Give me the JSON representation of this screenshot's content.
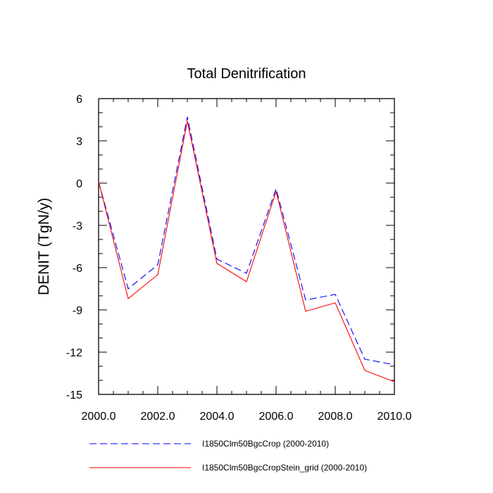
{
  "chart_data": {
    "type": "line",
    "title": "Total Denitrification",
    "xlabel": "",
    "ylabel": "DENIT  (TgN/y)",
    "xlim": [
      2000,
      2010
    ],
    "ylim": [
      -15,
      6
    ],
    "xticks": [
      2000,
      2002,
      2004,
      2006,
      2008,
      2010
    ],
    "xtick_labels": [
      "2000.0",
      "2002.0",
      "2004.0",
      "2006.0",
      "2008.0",
      "2010.0"
    ],
    "yticks": [
      6,
      3,
      0,
      -3,
      -6,
      -9,
      -12,
      -15
    ],
    "ytick_labels": [
      "6",
      "3",
      "0",
      "-3",
      "-6",
      "-9",
      "-12",
      "-15"
    ],
    "x": [
      2000,
      2001,
      2002,
      2003,
      2004,
      2005,
      2006,
      2007,
      2008,
      2009,
      2010
    ],
    "series": [
      {
        "name": "I1850Clm50BgcCrop (2000-2010)",
        "color": "#0000ff",
        "style": "dashed",
        "values": [
          0.1,
          -7.5,
          -5.8,
          4.7,
          -5.4,
          -6.4,
          -0.4,
          -8.3,
          -7.9,
          -12.5,
          -12.9
        ]
      },
      {
        "name": "I1850Clm50BgcCropStein_grid (2000-2010)",
        "color": "#ff0000",
        "style": "solid",
        "values": [
          0.1,
          -8.2,
          -6.5,
          4.4,
          -5.7,
          -7.0,
          -0.6,
          -9.1,
          -8.5,
          -13.3,
          -14.1
        ]
      }
    ],
    "grid": false,
    "legend": "bottom"
  }
}
